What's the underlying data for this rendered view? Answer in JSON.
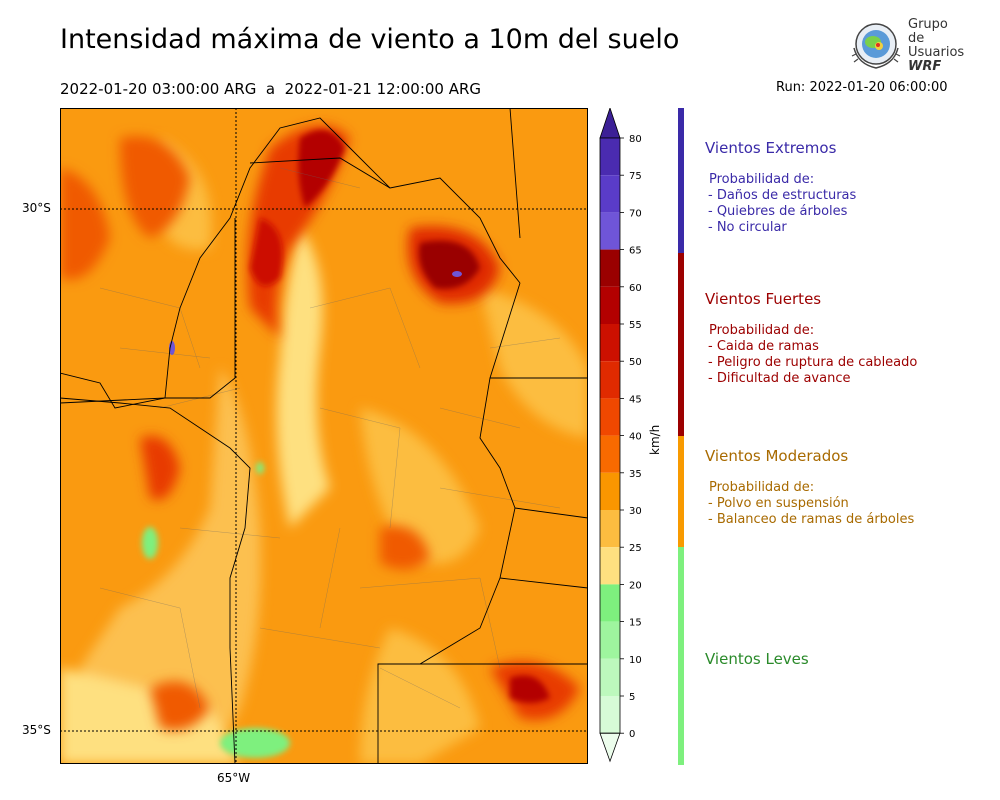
{
  "header": {
    "title": "Intensidad máxima de viento a 10m del suelo",
    "period": "2022-01-20 03:00:00 ARG  a  2022-01-21 12:00:00 ARG",
    "run": "Run: 2022-01-20 06:00:00"
  },
  "logo": {
    "line1": "Grupo de",
    "line2": "Usuarios",
    "line3": "WRF"
  },
  "map": {
    "lat_labels": [
      "30°S",
      "35°S"
    ],
    "lon_labels": [
      "65°W"
    ]
  },
  "colorbar": {
    "units": "km/h",
    "ticks": [
      "80",
      "75",
      "70",
      "65",
      "60",
      "55",
      "50",
      "45",
      "40",
      "35",
      "30",
      "25",
      "20",
      "15",
      "10",
      "5",
      "0"
    ],
    "colors": [
      "#4a2bb0",
      "#5a3cc8",
      "#6f55d8",
      "#9a0000",
      "#b30000",
      "#cc1000",
      "#e02a00",
      "#f04800",
      "#f86a00",
      "#fa9600",
      "#fcbd40",
      "#fee080",
      "#7ef07e",
      "#9ef59e",
      "#bdf8bd",
      "#d6fbd6",
      "#ecfdec"
    ],
    "top_color": "#3c2096"
  },
  "categories": [
    {
      "name": "Vientos Extremos",
      "color": "#3a2aa8",
      "bar": "#3a2aa8",
      "lines": [
        "Probabilidad de:",
        "- Daños de estructuras",
        "- Quiebres de árboles",
        "- No circular"
      ]
    },
    {
      "name": "Vientos Fuertes",
      "color": "#9c0000",
      "bar": "#9c0000",
      "lines": [
        "Probabilidad de:",
        "- Caida de ramas",
        "- Peligro de ruptura de cableado",
        "- Dificultad de avance"
      ]
    },
    {
      "name": "Vientos Moderados",
      "color": "#a86a00",
      "bar": "#f89a00",
      "lines": [
        "Probabilidad de:",
        "- Polvo en suspensión",
        "- Balanceo de ramas de árboles"
      ]
    },
    {
      "name": "Vientos Leves",
      "color": "#2a8a2a",
      "bar": "#7ef07e",
      "lines": []
    }
  ]
}
